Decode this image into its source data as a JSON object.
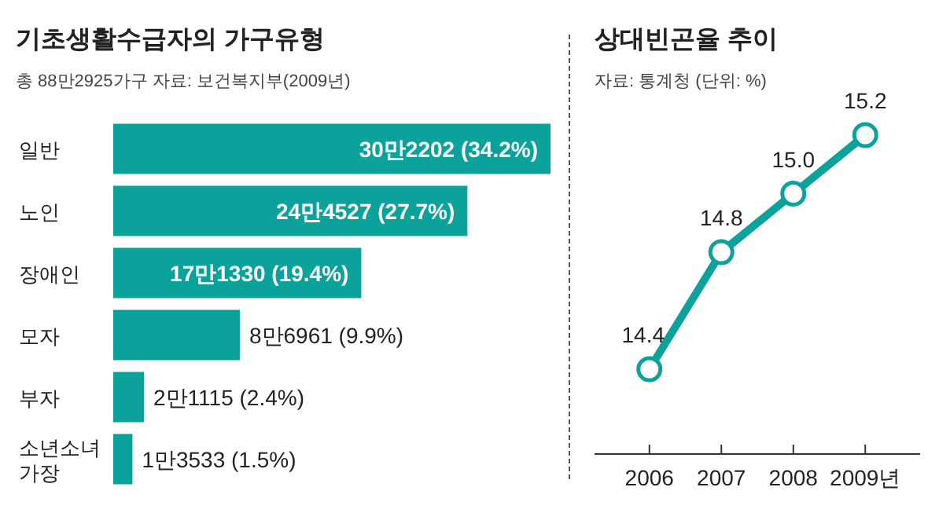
{
  "chart_data": [
    {
      "type": "bar",
      "orientation": "horizontal",
      "title": "기초생활수급자의 가구유형",
      "subtitle": "총 88만2925가구   자료: 보건복지부(2009년)",
      "categories": [
        "일반",
        "노인",
        "장애인",
        "모자",
        "부자",
        "소년소녀 가장"
      ],
      "values": [
        34.2,
        27.7,
        19.4,
        9.9,
        2.4,
        1.5
      ],
      "value_labels": [
        "30만2202 (34.2%)",
        "24만4527 (27.7%)",
        "17만1330 (19.4%)",
        "8만6961 (9.9%)",
        "2만1115 (2.4%)",
        "1만3533 (1.5%)"
      ],
      "color": "#0ba29c"
    },
    {
      "type": "line",
      "title": "상대빈곤율 추이",
      "subtitle": "자료: 통계청   (단위: %)",
      "categories": [
        "2006",
        "2007",
        "2008",
        "2009년"
      ],
      "values": [
        14.4,
        14.8,
        15.0,
        15.2
      ],
      "value_labels": [
        "14.4",
        "14.8",
        "15.0",
        "15.2"
      ],
      "color": "#0ba29c",
      "marker": "circle"
    }
  ]
}
